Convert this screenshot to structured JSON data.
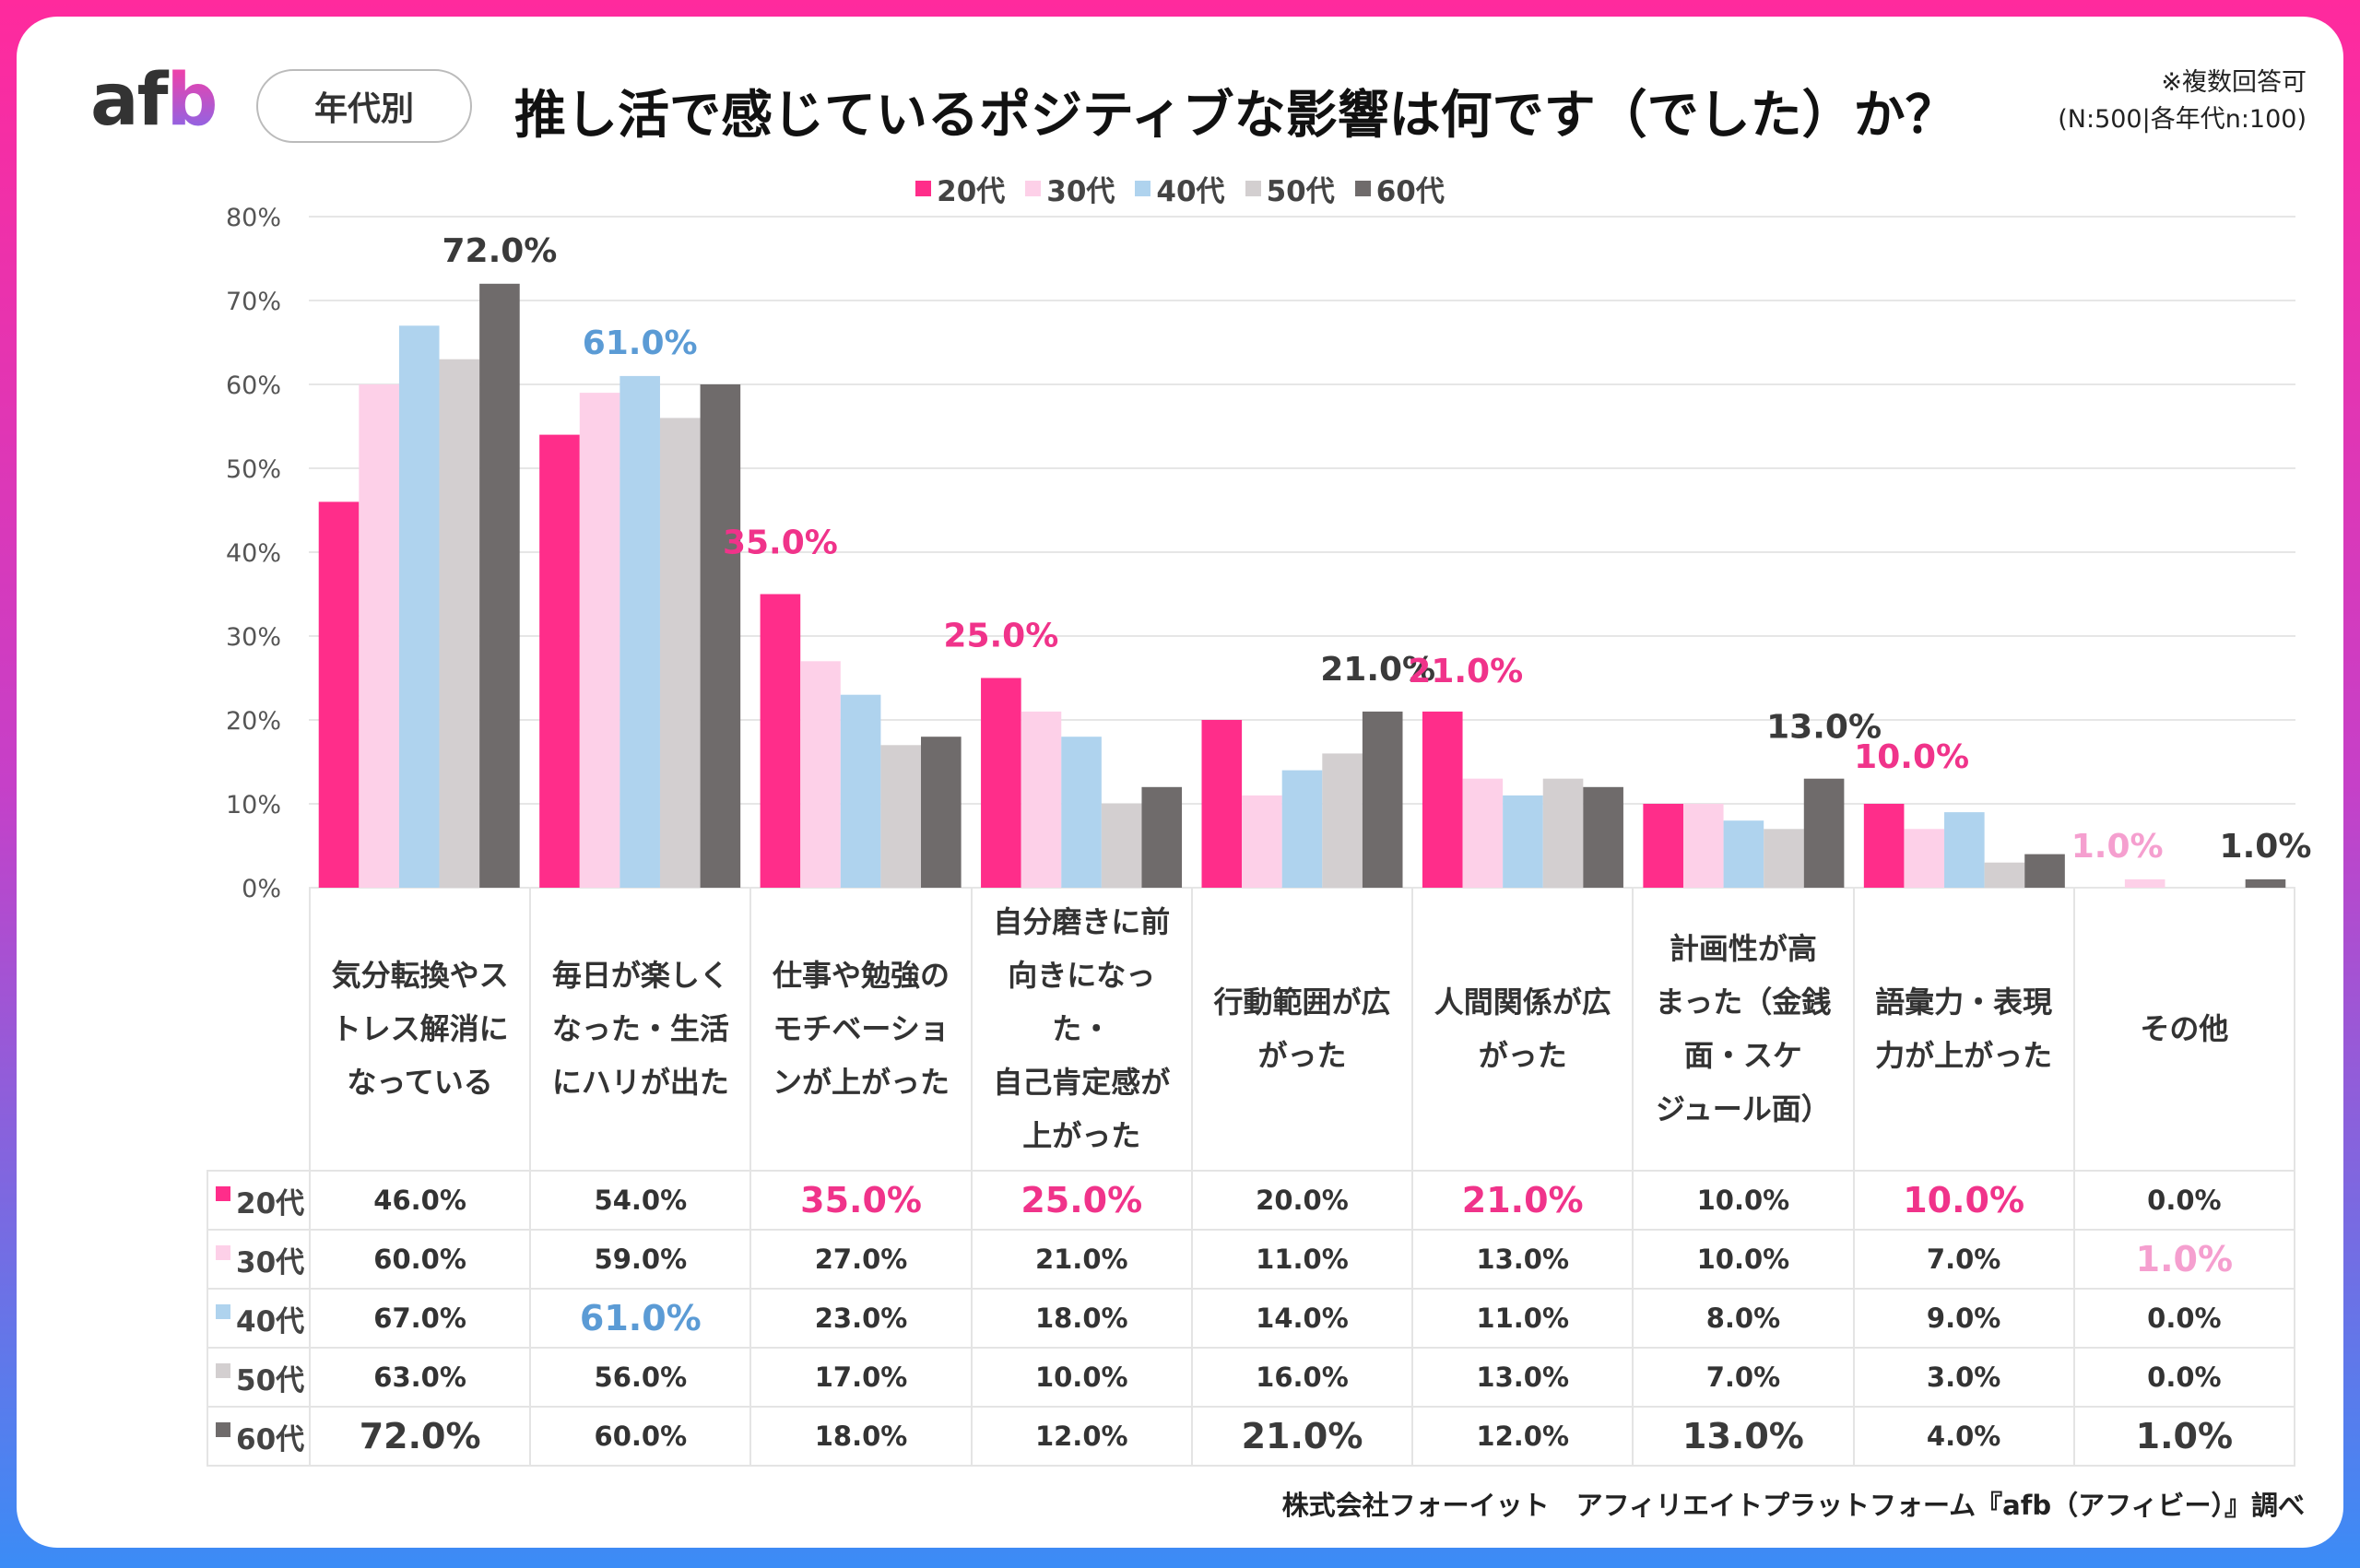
{
  "header": {
    "logo": "afb",
    "tag": "年代別",
    "title": "推し活で感じているポジティブな影響は何です（でした）か？",
    "note_line1": "※複数回答可",
    "note_line2": "(N:500|各年代n:100)"
  },
  "footer": "株式会社フォーイット　アフィリエイトプラットフォーム『afb（アフィビー）』調べ",
  "chart_data": {
    "type": "bar",
    "title": "推し活で感じているポジティブな影響は何です（でした）か？",
    "ylim": [
      0,
      80
    ],
    "yticks": [
      "0%",
      "10%",
      "20%",
      "30%",
      "40%",
      "50%",
      "60%",
      "70%",
      "80%"
    ],
    "grid": true,
    "legend_position": "top",
    "categories": [
      "気分転換やス\nトレス解消に\nなっている",
      "毎日が楽しく\nなった・生活\nにハリが出た",
      "仕事や勉強の\nモチベーショ\nンが上がった",
      "自分磨きに前\n向きになっ\nた・\n自己肯定感が\n上がった",
      "行動範囲が広\nがった",
      "人間関係が広\nがった",
      "計画性が高\nまった（金銭\n面・スケ\nジュール面）",
      "語彙力・表現\n力が上がった",
      "その他"
    ],
    "series": [
      {
        "name": "20代",
        "color": "#ff2d8a",
        "values": [
          46,
          54,
          35,
          25,
          20,
          21,
          10,
          10,
          0
        ],
        "labels": [
          "46.0%",
          "54.0%",
          "35.0%",
          "25.0%",
          "20.0%",
          "21.0%",
          "10.0%",
          "10.0%",
          "0.0%"
        ]
      },
      {
        "name": "30代",
        "color": "#fdd0e8",
        "values": [
          60,
          59,
          27,
          21,
          11,
          13,
          10,
          7,
          1
        ],
        "labels": [
          "60.0%",
          "59.0%",
          "27.0%",
          "21.0%",
          "11.0%",
          "13.0%",
          "10.0%",
          "7.0%",
          "1.0%"
        ]
      },
      {
        "name": "40代",
        "color": "#afd3ee",
        "values": [
          67,
          61,
          23,
          18,
          14,
          11,
          8,
          9,
          0
        ],
        "labels": [
          "67.0%",
          "61.0%",
          "23.0%",
          "18.0%",
          "14.0%",
          "11.0%",
          "8.0%",
          "9.0%",
          "0.0%"
        ]
      },
      {
        "name": "50代",
        "color": "#d3cfd0",
        "values": [
          63,
          56,
          17,
          10,
          16,
          13,
          7,
          3,
          0
        ],
        "labels": [
          "63.0%",
          "56.0%",
          "17.0%",
          "10.0%",
          "16.0%",
          "13.0%",
          "7.0%",
          "3.0%",
          "0.0%"
        ]
      },
      {
        "name": "60代",
        "color": "#6f6b6b",
        "values": [
          72,
          60,
          18,
          12,
          21,
          12,
          13,
          4,
          1
        ],
        "labels": [
          "72.0%",
          "60.0%",
          "18.0%",
          "12.0%",
          "21.0%",
          "12.0%",
          "13.0%",
          "4.0%",
          "1.0%"
        ]
      }
    ],
    "highlights": [
      {
        "series": 4,
        "category": 0,
        "color": "#3a3a3a"
      },
      {
        "series": 2,
        "category": 1,
        "color": "#5b9bd5"
      },
      {
        "series": 0,
        "category": 2,
        "color": "#f0338a"
      },
      {
        "series": 0,
        "category": 3,
        "color": "#f0338a"
      },
      {
        "series": 4,
        "category": 4,
        "color": "#3a3a3a"
      },
      {
        "series": 0,
        "category": 5,
        "color": "#f0338a"
      },
      {
        "series": 4,
        "category": 6,
        "color": "#3a3a3a"
      },
      {
        "series": 0,
        "category": 7,
        "color": "#f0338a"
      },
      {
        "series": 1,
        "category": 8,
        "color": "#f59fcf"
      },
      {
        "series": 4,
        "category": 8,
        "color": "#3a3a3a"
      }
    ]
  }
}
